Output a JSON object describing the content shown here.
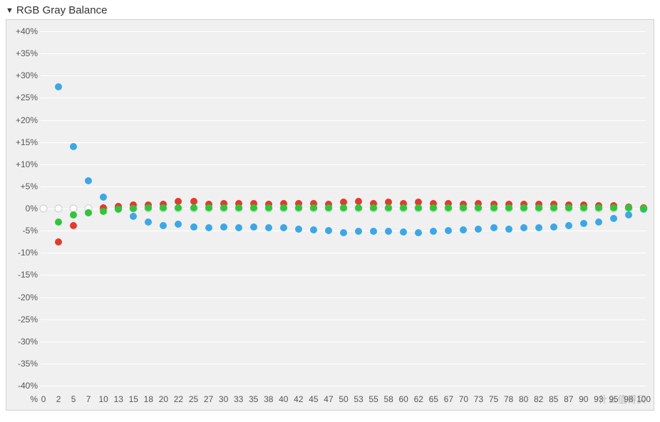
{
  "panel": {
    "title": "RGB Gray Balance",
    "expanded": true
  },
  "watermark": "什么值得买",
  "chart": {
    "type": "scatter",
    "background_color": "#f0f0f0",
    "grid_color": "#ffffff",
    "label_color": "#555555",
    "label_fontsize": 12,
    "ylim": [
      -40,
      40
    ],
    "ytick_step": 5,
    "ytick_suffix": "%",
    "ytick_prefix_pos": "+",
    "x_categories": [
      "0",
      "2",
      "5",
      "7",
      "10",
      "13",
      "15",
      "18",
      "20",
      "22",
      "25",
      "27",
      "30",
      "33",
      "35",
      "38",
      "40",
      "42",
      "45",
      "47",
      "50",
      "53",
      "55",
      "58",
      "60",
      "62",
      "65",
      "67",
      "70",
      "73",
      "75",
      "78",
      "80",
      "82",
      "85",
      "87",
      "90",
      "93",
      "95",
      "98",
      "100"
    ],
    "x_unit_label": "%",
    "ref_marker": {
      "color": "#ffffff",
      "stroke": "#cccccc",
      "size": 11,
      "y": 0
    },
    "dot_size": 10,
    "series": [
      {
        "name": "Blue",
        "color": "#3ba7e6",
        "values": [
          null,
          27.5,
          14.0,
          6.2,
          2.5,
          0.3,
          -1.8,
          -3.0,
          -3.8,
          -3.6,
          -4.2,
          -4.4,
          -4.2,
          -4.4,
          -4.2,
          -4.4,
          -4.4,
          -4.6,
          -4.8,
          -5.0,
          -5.5,
          -5.2,
          -5.2,
          -5.2,
          -5.3,
          -5.5,
          -5.2,
          -5.0,
          -4.8,
          -4.6,
          -4.4,
          -4.6,
          -4.4,
          -4.4,
          -4.2,
          -3.8,
          -3.4,
          -3.0,
          -2.2,
          -1.4,
          -0.2
        ]
      },
      {
        "name": "Red",
        "color": "#e23a2e",
        "values": [
          null,
          -7.6,
          -3.8,
          -1.0,
          0.2,
          0.5,
          0.8,
          0.8,
          1.0,
          1.6,
          1.6,
          1.0,
          1.2,
          1.2,
          1.2,
          1.0,
          1.2,
          1.2,
          1.2,
          1.0,
          1.4,
          1.6,
          1.2,
          1.4,
          1.2,
          1.4,
          1.2,
          1.2,
          1.0,
          1.2,
          1.0,
          1.0,
          1.0,
          1.0,
          1.0,
          0.8,
          0.8,
          0.6,
          0.6,
          0.4,
          0.1
        ]
      },
      {
        "name": "Green",
        "color": "#2dc63b",
        "values": [
          null,
          -3.0,
          -1.4,
          -1.0,
          -0.6,
          -0.2,
          0.0,
          0.2,
          0.2,
          0.2,
          0.2,
          0.2,
          0.2,
          0.2,
          0.2,
          0.2,
          0.2,
          0.2,
          0.2,
          0.2,
          0.2,
          0.2,
          0.2,
          0.2,
          0.2,
          0.2,
          0.2,
          0.2,
          0.2,
          0.2,
          0.2,
          0.2,
          0.2,
          0.2,
          0.2,
          0.2,
          0.2,
          0.2,
          0.2,
          0.2,
          0.0
        ]
      }
    ]
  }
}
